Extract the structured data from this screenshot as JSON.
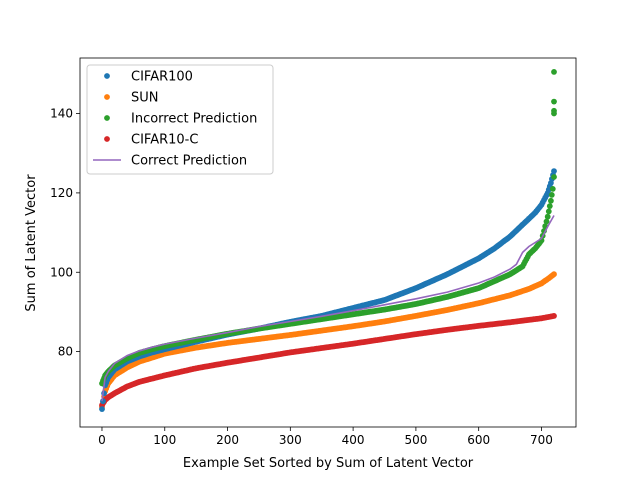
{
  "chart_data": {
    "type": "scatter",
    "title": "",
    "xlabel": "Example Set Sorted by Sum of Latent Vector",
    "ylabel": "Sum of Latent Vector",
    "xlim": [
      -35,
      755
    ],
    "ylim": [
      61,
      154
    ],
    "x_ticks": [
      0,
      100,
      200,
      300,
      400,
      500,
      600,
      700
    ],
    "y_ticks": [
      80,
      100,
      120,
      140
    ],
    "grid": false,
    "legend_position": "top-left",
    "series": [
      {
        "name": "CIFAR100",
        "kind": "points",
        "color": "#1f77b4",
        "x": [
          0,
          5,
          10,
          20,
          40,
          60,
          80,
          100,
          150,
          200,
          250,
          300,
          350,
          400,
          450,
          500,
          550,
          600,
          625,
          650,
          670,
          680,
          690,
          700,
          710,
          715,
          720
        ],
        "y": [
          65.5,
          71.5,
          73.5,
          75.5,
          77.5,
          78.8,
          79.8,
          80.6,
          82.5,
          84.3,
          85.8,
          87.5,
          89.0,
          91.0,
          93.0,
          96.0,
          99.5,
          103.5,
          106.0,
          109.0,
          112.0,
          113.5,
          115.0,
          117.0,
          120.0,
          122.5,
          125.5
        ]
      },
      {
        "name": "SUN",
        "kind": "points",
        "color": "#ff7f0e",
        "x": [
          0,
          5,
          10,
          20,
          40,
          60,
          80,
          100,
          150,
          200,
          250,
          300,
          350,
          400,
          450,
          500,
          550,
          600,
          650,
          680,
          700,
          710,
          720
        ],
        "y": [
          66.0,
          70.0,
          72.0,
          74.0,
          76.0,
          77.5,
          78.5,
          79.5,
          81.0,
          82.2,
          83.2,
          84.2,
          85.3,
          86.4,
          87.6,
          89.0,
          90.5,
          92.2,
          94.2,
          95.8,
          97.2,
          98.3,
          99.5
        ]
      },
      {
        "name": "Incorrect Prediction",
        "kind": "points",
        "color": "#2ca02c",
        "x": [
          0,
          5,
          10,
          20,
          40,
          60,
          80,
          100,
          150,
          200,
          250,
          300,
          350,
          400,
          450,
          500,
          550,
          600,
          650,
          670,
          680,
          690,
          700,
          710,
          715,
          718,
          720,
          720,
          720,
          720,
          720
        ],
        "y": [
          72.0,
          74.0,
          75.0,
          76.5,
          78.3,
          79.7,
          80.6,
          81.4,
          83.0,
          84.5,
          85.8,
          87.0,
          88.2,
          89.4,
          90.6,
          92.0,
          93.8,
          96.0,
          99.5,
          101.5,
          104.5,
          106.0,
          108.0,
          114.0,
          118.0,
          121.0,
          124.0,
          140.0,
          140.7,
          143.0,
          150.5
        ]
      },
      {
        "name": "CIFAR10-C",
        "kind": "points",
        "color": "#d62728",
        "x": [
          0,
          5,
          10,
          20,
          40,
          60,
          80,
          100,
          150,
          200,
          250,
          300,
          350,
          400,
          450,
          500,
          550,
          600,
          650,
          700,
          720
        ],
        "y": [
          66.5,
          67.8,
          68.5,
          69.5,
          71.2,
          72.4,
          73.2,
          74.0,
          75.8,
          77.2,
          78.5,
          79.8,
          80.9,
          82.0,
          83.2,
          84.4,
          85.5,
          86.5,
          87.4,
          88.4,
          89.0
        ]
      },
      {
        "name": "Correct Prediction",
        "kind": "line",
        "color": "#9467bd",
        "x": [
          0,
          5,
          10,
          20,
          40,
          60,
          80,
          100,
          150,
          200,
          250,
          300,
          350,
          400,
          450,
          500,
          550,
          600,
          625,
          650,
          660,
          670,
          680,
          690,
          700,
          710,
          720
        ],
        "y": [
          67.5,
          73.5,
          75.0,
          77.0,
          79.0,
          80.2,
          81.1,
          81.9,
          83.4,
          84.8,
          86.3,
          87.6,
          88.9,
          90.3,
          91.8,
          93.3,
          95.0,
          97.3,
          98.8,
          100.8,
          102.0,
          105.0,
          106.5,
          107.5,
          108.5,
          111.5,
          114.3
        ]
      }
    ]
  }
}
